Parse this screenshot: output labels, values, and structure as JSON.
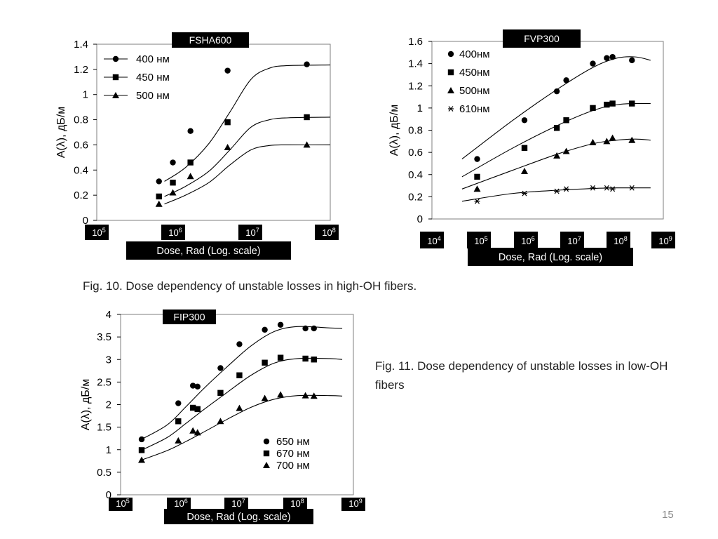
{
  "chart_data": [
    {
      "type": "scatter",
      "title": "FSHA600",
      "ylabel": "A(λ), дБ/м",
      "xlabel": "Dose, Rad (Log. scale)",
      "xscale": "log",
      "xlim": [
        100000,
        100000000
      ],
      "ylim": [
        0,
        1.4
      ],
      "yticks": [
        "0",
        "0.2",
        "0.4",
        "0.6",
        "0.8",
        "1",
        "1.2",
        "1.4"
      ],
      "xticks": [
        {
          "base": "10",
          "exp": "5"
        },
        {
          "base": "10",
          "exp": "6"
        },
        {
          "base": "10",
          "exp": "7"
        },
        {
          "base": "10",
          "exp": "8"
        }
      ],
      "legend_position": "top-left",
      "grid": false,
      "series": [
        {
          "name": "400 нм",
          "marker": "circle",
          "x": [
            630000,
            950000,
            1600000,
            4800000,
            50000000
          ],
          "values": [
            0.31,
            0.46,
            0.71,
            1.19,
            1.24
          ]
        },
        {
          "name": "450 нм",
          "marker": "square",
          "x": [
            630000,
            950000,
            1600000,
            4800000,
            50000000
          ],
          "values": [
            0.19,
            0.3,
            0.46,
            0.78,
            0.82
          ]
        },
        {
          "name": "500 нм",
          "marker": "triangle",
          "x": [
            630000,
            950000,
            1600000,
            4800000,
            50000000
          ],
          "values": [
            0.13,
            0.22,
            0.35,
            0.58,
            0.6
          ]
        }
      ]
    },
    {
      "type": "scatter",
      "title": "FVP300",
      "ylabel": "A(λ), дБ/м",
      "xlabel": "Dose, Rad (Log. scale)",
      "xscale": "log",
      "xlim": [
        10000,
        1000000000
      ],
      "ylim": [
        0,
        1.6
      ],
      "yticks": [
        "0",
        "0.2",
        "0.4",
        "0.6",
        "0.8",
        "1",
        "1.2",
        "1.4",
        "1.6"
      ],
      "xticks": [
        {
          "base": "10",
          "exp": "4"
        },
        {
          "base": "10",
          "exp": "5"
        },
        {
          "base": "10",
          "exp": "6"
        },
        {
          "base": "10",
          "exp": "7"
        },
        {
          "base": "10",
          "exp": "8"
        },
        {
          "base": "10",
          "exp": "9"
        }
      ],
      "legend_position": "top-left",
      "grid": false,
      "series": [
        {
          "name": "400нм",
          "marker": "circle",
          "x": [
            95000,
            1000000,
            5000000,
            8000000,
            30000000,
            60000000,
            80000000,
            210000000
          ],
          "values": [
            0.54,
            0.89,
            1.15,
            1.25,
            1.4,
            1.45,
            1.46,
            1.43
          ]
        },
        {
          "name": "450нм",
          "marker": "square",
          "x": [
            95000,
            1000000,
            5000000,
            8000000,
            30000000,
            60000000,
            80000000,
            210000000
          ],
          "values": [
            0.38,
            0.64,
            0.82,
            0.89,
            1.0,
            1.03,
            1.04,
            1.04
          ]
        },
        {
          "name": "500нм",
          "marker": "triangle",
          "x": [
            95000,
            1000000,
            5000000,
            8000000,
            30000000,
            60000000,
            80000000,
            210000000
          ],
          "values": [
            0.27,
            0.43,
            0.57,
            0.61,
            0.69,
            0.7,
            0.73,
            0.71
          ]
        },
        {
          "name": "610нм",
          "marker": "asterisk",
          "x": [
            95000,
            1000000,
            5000000,
            8000000,
            30000000,
            60000000,
            80000000,
            210000000
          ],
          "values": [
            0.16,
            0.23,
            0.25,
            0.27,
            0.28,
            0.28,
            0.27,
            0.28
          ]
        }
      ]
    },
    {
      "type": "scatter",
      "title": "FIP300",
      "ylabel": "A(λ), дБ/м",
      "xlabel": "Dose, Rad (Log. scale)",
      "xscale": "log",
      "xlim": [
        100000,
        1000000000
      ],
      "ylim": [
        0,
        4
      ],
      "yticks": [
        "0",
        "0.5",
        "1",
        "1.5",
        "2",
        "2.5",
        "3",
        "3.5",
        "4"
      ],
      "xticks": [
        {
          "base": "10",
          "exp": "5"
        },
        {
          "base": "10",
          "exp": "6"
        },
        {
          "base": "10",
          "exp": "7"
        },
        {
          "base": "10",
          "exp": "8"
        },
        {
          "base": "10",
          "exp": "9"
        }
      ],
      "legend_position": "bottom-right",
      "grid": false,
      "series": [
        {
          "name": "650 нм",
          "marker": "circle",
          "x": [
            230000,
            980000,
            1750000,
            2100000,
            5200000,
            11000000,
            30000000,
            56000000,
            150000000,
            210000000
          ],
          "values": [
            1.23,
            2.03,
            2.42,
            2.4,
            2.81,
            3.34,
            3.66,
            3.77,
            3.69,
            3.69
          ]
        },
        {
          "name": "670 нм",
          "marker": "square",
          "x": [
            230000,
            980000,
            1750000,
            2100000,
            5200000,
            11000000,
            30000000,
            56000000,
            150000000,
            210000000
          ],
          "values": [
            0.99,
            1.63,
            1.93,
            1.9,
            2.26,
            2.65,
            2.93,
            3.04,
            3.02,
            3.0
          ]
        },
        {
          "name": "700 нм",
          "marker": "triangle",
          "x": [
            230000,
            980000,
            1750000,
            2100000,
            5200000,
            11000000,
            30000000,
            56000000,
            150000000,
            210000000
          ],
          "values": [
            0.77,
            1.2,
            1.42,
            1.38,
            1.63,
            1.92,
            2.14,
            2.22,
            2.2,
            2.19
          ]
        }
      ]
    }
  ],
  "captions": {
    "fig10": "Fig. 10. Dose dependency of unstable losses in high-OH fibers.",
    "fig11": "Fig. 11. Dose dependency of unstable losses in low-OH fibers"
  },
  "page_number": "15"
}
